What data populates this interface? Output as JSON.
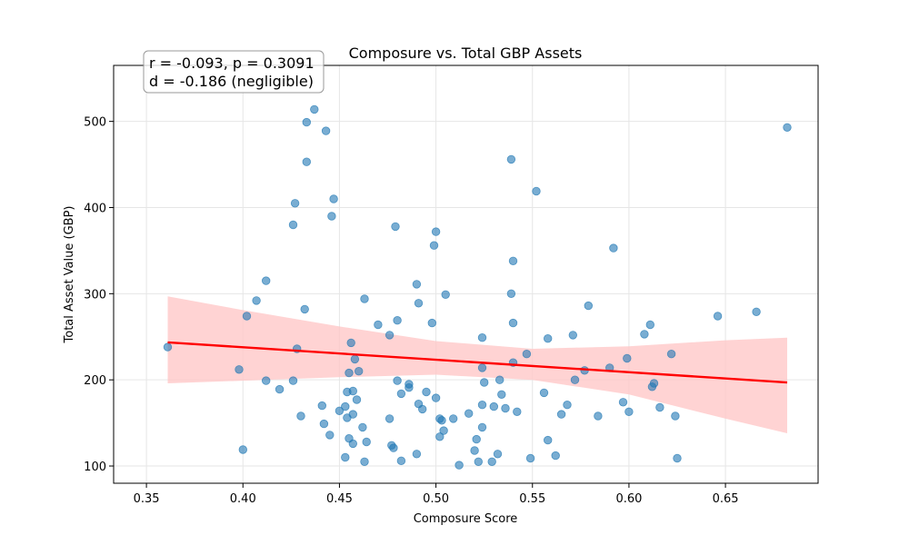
{
  "chart_data": {
    "type": "scatter",
    "title": "Composure vs. Total GBP Assets",
    "xlabel": "Composure Score",
    "ylabel": "Total Asset Value (GBP)",
    "xlim": [
      0.333,
      0.698
    ],
    "ylim": [
      80,
      565
    ],
    "xticks": [
      0.35,
      0.4,
      0.45,
      0.5,
      0.55,
      0.6,
      0.65
    ],
    "xtick_labels": [
      "0.35",
      "0.40",
      "0.45",
      "0.50",
      "0.55",
      "0.60",
      "0.65"
    ],
    "yticks": [
      100,
      200,
      300,
      400,
      500
    ],
    "ytick_labels": [
      "100",
      "200",
      "300",
      "400",
      "500"
    ],
    "grid": true,
    "annotation_lines": [
      "r = -0.093, p = 0.3091",
      "d = -0.186 (negligible)"
    ],
    "point_color": "#1f77b4",
    "regression_color": "#ff0000",
    "ci_color": "#ffc8c8",
    "points": [
      [
        0.361,
        238
      ],
      [
        0.398,
        212
      ],
      [
        0.4,
        119
      ],
      [
        0.402,
        274
      ],
      [
        0.407,
        292
      ],
      [
        0.412,
        315
      ],
      [
        0.412,
        199
      ],
      [
        0.419,
        189
      ],
      [
        0.426,
        199
      ],
      [
        0.426,
        380
      ],
      [
        0.427,
        405
      ],
      [
        0.428,
        236
      ],
      [
        0.43,
        158
      ],
      [
        0.432,
        282
      ],
      [
        0.433,
        499
      ],
      [
        0.433,
        453
      ],
      [
        0.437,
        514
      ],
      [
        0.441,
        170
      ],
      [
        0.442,
        149
      ],
      [
        0.443,
        489
      ],
      [
        0.445,
        136
      ],
      [
        0.446,
        390
      ],
      [
        0.447,
        410
      ],
      [
        0.45,
        164
      ],
      [
        0.453,
        110
      ],
      [
        0.453,
        169
      ],
      [
        0.454,
        186
      ],
      [
        0.454,
        156
      ],
      [
        0.455,
        132
      ],
      [
        0.455,
        208
      ],
      [
        0.456,
        243
      ],
      [
        0.457,
        160
      ],
      [
        0.457,
        187
      ],
      [
        0.457,
        126
      ],
      [
        0.458,
        224
      ],
      [
        0.459,
        177
      ],
      [
        0.46,
        210
      ],
      [
        0.462,
        145
      ],
      [
        0.463,
        294
      ],
      [
        0.463,
        105
      ],
      [
        0.464,
        128
      ],
      [
        0.47,
        264
      ],
      [
        0.476,
        252
      ],
      [
        0.476,
        155
      ],
      [
        0.477,
        124
      ],
      [
        0.478,
        121
      ],
      [
        0.479,
        378
      ],
      [
        0.48,
        199
      ],
      [
        0.48,
        269
      ],
      [
        0.482,
        184
      ],
      [
        0.482,
        106
      ],
      [
        0.486,
        195
      ],
      [
        0.486,
        191
      ],
      [
        0.49,
        311
      ],
      [
        0.49,
        114
      ],
      [
        0.491,
        172
      ],
      [
        0.491,
        289
      ],
      [
        0.493,
        166
      ],
      [
        0.495,
        186
      ],
      [
        0.498,
        266
      ],
      [
        0.499,
        356
      ],
      [
        0.5,
        372
      ],
      [
        0.5,
        179
      ],
      [
        0.502,
        134
      ],
      [
        0.502,
        155
      ],
      [
        0.503,
        153
      ],
      [
        0.504,
        141
      ],
      [
        0.505,
        299
      ],
      [
        0.509,
        155
      ],
      [
        0.512,
        101
      ],
      [
        0.517,
        161
      ],
      [
        0.52,
        118
      ],
      [
        0.521,
        131
      ],
      [
        0.522,
        105
      ],
      [
        0.524,
        214
      ],
      [
        0.524,
        249
      ],
      [
        0.524,
        145
      ],
      [
        0.524,
        171
      ],
      [
        0.525,
        197
      ],
      [
        0.529,
        105
      ],
      [
        0.53,
        169
      ],
      [
        0.532,
        114
      ],
      [
        0.533,
        200
      ],
      [
        0.534,
        183
      ],
      [
        0.536,
        167
      ],
      [
        0.539,
        456
      ],
      [
        0.539,
        300
      ],
      [
        0.54,
        338
      ],
      [
        0.54,
        220
      ],
      [
        0.54,
        266
      ],
      [
        0.542,
        163
      ],
      [
        0.547,
        230
      ],
      [
        0.549,
        109
      ],
      [
        0.552,
        419
      ],
      [
        0.556,
        185
      ],
      [
        0.558,
        248
      ],
      [
        0.558,
        130
      ],
      [
        0.562,
        112
      ],
      [
        0.565,
        160
      ],
      [
        0.568,
        171
      ],
      [
        0.571,
        252
      ],
      [
        0.572,
        200
      ],
      [
        0.577,
        211
      ],
      [
        0.579,
        286
      ],
      [
        0.584,
        158
      ],
      [
        0.59,
        214
      ],
      [
        0.592,
        353
      ],
      [
        0.597,
        174
      ],
      [
        0.599,
        225
      ],
      [
        0.6,
        163
      ],
      [
        0.608,
        253
      ],
      [
        0.611,
        264
      ],
      [
        0.612,
        192
      ],
      [
        0.613,
        196
      ],
      [
        0.616,
        168
      ],
      [
        0.622,
        230
      ],
      [
        0.624,
        158
      ],
      [
        0.625,
        109
      ],
      [
        0.646,
        274
      ],
      [
        0.666,
        279
      ],
      [
        0.682,
        493
      ]
    ],
    "regression_line": {
      "x": [
        0.361,
        0.682
      ],
      "y": [
        243.5,
        197.0
      ]
    },
    "confidence_band": {
      "x": [
        0.361,
        0.4,
        0.45,
        0.5,
        0.55,
        0.6,
        0.65,
        0.682
      ],
      "upper": [
        297,
        281,
        262,
        245,
        236,
        239,
        246,
        249
      ],
      "lower": [
        196,
        199,
        203,
        206,
        200,
        183,
        155,
        138
      ]
    }
  }
}
